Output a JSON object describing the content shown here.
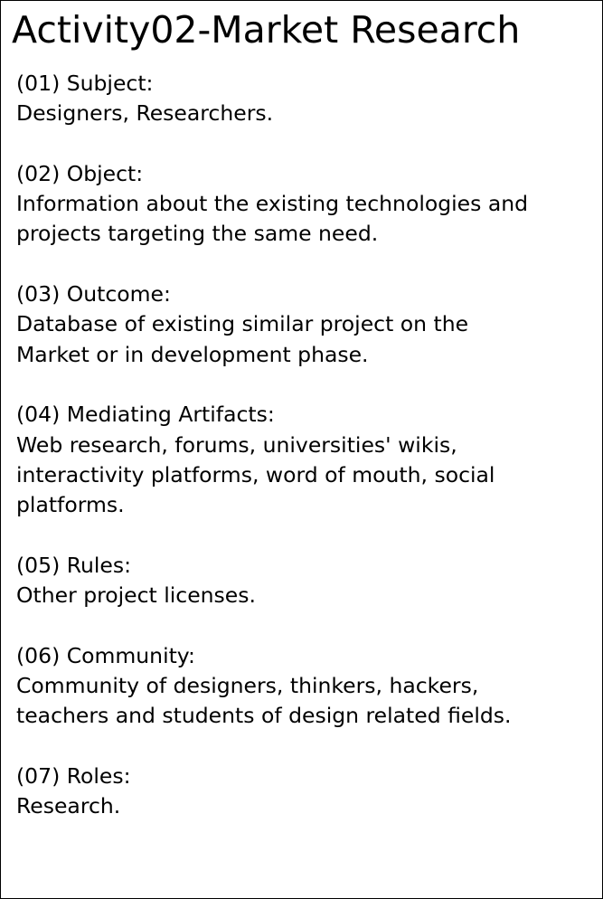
{
  "document": {
    "title": "Activity02-Market Research",
    "sections": [
      {
        "heading": "(01) Subject:",
        "lines": [
          "Designers, Researchers."
        ]
      },
      {
        "heading": "(02) Object:",
        "lines": [
          "Information about the existing technologies and",
          "projects targeting the same need."
        ]
      },
      {
        "heading": "(03) Outcome:",
        "lines": [
          "Database of existing similar project on the",
          "Market or in development phase."
        ]
      },
      {
        "heading": "(04) Mediating Artifacts:",
        "lines": [
          "Web research, forums, universities' wikis,",
          "interactivity platforms, word of mouth, social",
          "platforms."
        ]
      },
      {
        "heading": "(05) Rules:",
        "lines": [
          "Other project licenses."
        ]
      },
      {
        "heading": "(06) Community:",
        "lines": [
          "Community of designers, thinkers, hackers,",
          "teachers and students of design related fields."
        ]
      },
      {
        "heading": "(07) Roles:",
        "lines": [
          "Research."
        ]
      }
    ]
  }
}
